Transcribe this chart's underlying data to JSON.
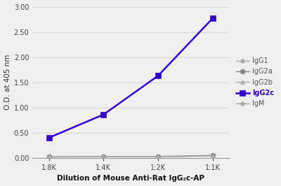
{
  "x_labels": [
    "1:8K",
    "1:4K",
    "1:2K",
    "1:1K"
  ],
  "x_values": [
    1,
    2,
    3,
    4
  ],
  "series": {
    "IgG1": [
      0.02,
      0.025,
      0.025,
      0.04
    ],
    "IgG2a": [
      0.02,
      0.025,
      0.03,
      0.05
    ],
    "IgG2b": [
      0.02,
      0.025,
      0.025,
      0.04
    ],
    "IgG2c": [
      0.4,
      0.86,
      1.63,
      2.77
    ],
    "IgM": [
      0.02,
      0.025,
      0.025,
      0.04
    ]
  },
  "colors": {
    "IgG1": "#aaaaaa",
    "IgG2a": "#888888",
    "IgG2b": "#aaaaaa",
    "IgG2c": "#3300cc",
    "IgM": "#aaaaaa"
  },
  "markers": {
    "IgG1": "o",
    "IgG2a": "o",
    "IgG2b": "^",
    "IgG2c": "s",
    "IgM": "*"
  },
  "marker_sizes": {
    "IgG1": 4,
    "IgG2a": 5,
    "IgG2b": 5,
    "IgG2c": 6,
    "IgM": 6
  },
  "linewidths": {
    "IgG1": 1.0,
    "IgG2a": 1.0,
    "IgG2b": 1.0,
    "IgG2c": 1.8,
    "IgM": 1.0
  },
  "ylabel": "O.D. at 405 nm",
  "xlabel": "Dilution of Mouse Anti-Rat IgG₂c-AP",
  "ylim": [
    0.0,
    3.0
  ],
  "yticks": [
    0.0,
    0.5,
    1.0,
    1.5,
    2.0,
    2.5,
    3.0
  ],
  "grid_color": "#d8d8d8",
  "background_color": "#efefef",
  "plot_bg_color": "#efefef",
  "figsize": [
    4.0,
    2.66
  ],
  "dpi": 100,
  "series_order": [
    "IgG1",
    "IgG2a",
    "IgG2b",
    "IgG2c",
    "IgM"
  ],
  "legend_texts": [
    "IgG1",
    "IgG2a",
    "IgG2b",
    "IgG2c",
    "IgM"
  ]
}
